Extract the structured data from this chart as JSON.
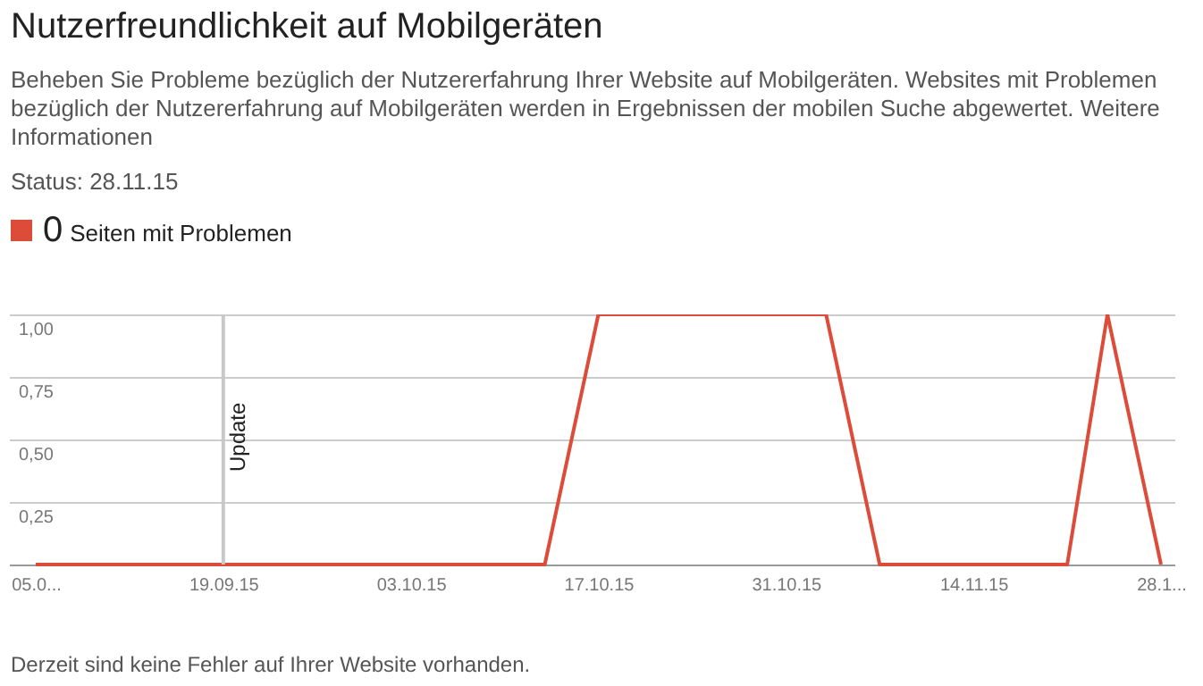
{
  "chart_data": {
    "type": "line",
    "title": "Nutzerfreundlichkeit auf Mobilgeräten",
    "subtitle": "Beheben Sie Probleme bezüglich der Nutzererfahrung Ihrer Website auf Mobilgeräten. Websites mit Problemen bezüglich der Nutzererfahrung auf Mobilgeräten werden in Ergebnissen der mobilen Suche abgewertet. Weitere Informationen",
    "annotations": [
      "Status: 28.11.15",
      "0",
      "Derzeit sind keine Fehler auf Ihrer Website vorhanden."
    ],
    "x": [
      "--09-05",
      "--10-13",
      "--10-17",
      "--11-03",
      "--11-07",
      "--11-21",
      "--11-24",
      "--11-28"
    ],
    "series": [
      {
        "name": "Seiten mit Problemen",
        "color": "#dd4b39",
        "values": [
          0,
          0,
          1,
          1,
          0,
          0,
          1,
          0
        ]
      }
    ],
    "xlim": [
      "--09-03",
      "--11-29"
    ],
    "xticks": [
      {
        "value": "--09-05",
        "label": "05.0..."
      },
      {
        "value": "--09-19",
        "label": "19.09.15"
      },
      {
        "value": "--10-03",
        "label": "03.10.15"
      },
      {
        "value": "--10-17",
        "label": "17.10.15"
      },
      {
        "value": "--10-31",
        "label": "31.10.15"
      },
      {
        "value": "--11-14",
        "label": "14.11.15"
      },
      {
        "value": "--11-28",
        "label": "28.1..."
      }
    ],
    "ylim": [
      0,
      1
    ],
    "yticks": [
      {
        "value": 0,
        "label": null
      },
      {
        "value": 0.25,
        "label": "0,25"
      },
      {
        "value": 0.5,
        "label": "0,50"
      },
      {
        "value": 0.75,
        "label": "0,75"
      },
      {
        "value": 1,
        "label": "1,00"
      }
    ],
    "ref_lines": [
      {
        "axis": "x",
        "value": "--09-19",
        "label": "Update",
        "color": "#c8c8c8"
      }
    ],
    "grid": "y",
    "legend": "top left",
    "marker": "none",
    "line_style": "solid"
  }
}
